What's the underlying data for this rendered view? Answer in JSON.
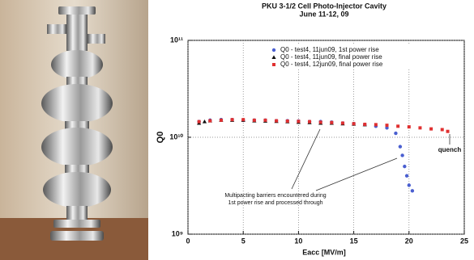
{
  "chart_data": {
    "type": "scatter",
    "title": "PKU 3-1/2 Cell Photo-Injector Cavity",
    "subtitle": "June 11-12, 09",
    "x_label": "Eacc [MV/m]",
    "y_label": "Q0",
    "xlim": [
      0,
      25
    ],
    "xticks": [
      0,
      5,
      10,
      15,
      20,
      25
    ],
    "ylim": [
      1000000000.0,
      100000000000.0
    ],
    "log_y": true,
    "yticks": [
      {
        "value": 1000000000.0,
        "label": "10⁹"
      },
      {
        "value": 10000000000.0,
        "label": "10¹⁰"
      },
      {
        "value": 100000000000.0,
        "label": "10¹¹"
      }
    ],
    "grid": true,
    "legend": "top-right",
    "annotations": [
      "quench",
      "Multipacting barriers encountered during",
      "1st power rise and processed through"
    ],
    "series": [
      {
        "name": "Q0 - test4, 11jun09, 1st power rise",
        "color": "#4a5fd0",
        "marker": "circle",
        "x": [
          1,
          2,
          3,
          4,
          5,
          6,
          7,
          8,
          9,
          10,
          11,
          12,
          13,
          14,
          15,
          16,
          17,
          18,
          18.8,
          19.2,
          19.4,
          19.6,
          19.8,
          20,
          20.3
        ],
        "values": [
          14500000000.0,
          15000000000.0,
          15200000000.0,
          15200000000.0,
          15000000000.0,
          15000000000.0,
          15000000000.0,
          14800000000.0,
          14800000000.0,
          14700000000.0,
          14500000000.0,
          14500000000.0,
          14300000000.0,
          14000000000.0,
          13800000000.0,
          13500000000.0,
          13000000000.0,
          12500000000.0,
          11000000000.0,
          8000000000.0,
          6500000000.0,
          5000000000.0,
          4000000000.0,
          3200000000.0,
          2800000000.0
        ]
      },
      {
        "name": "Q0 - test4, 11jun09, final power rise",
        "color": "#111111",
        "marker": "triangle",
        "x": [
          1,
          1.5,
          2,
          3,
          4,
          5,
          6,
          7,
          8,
          9,
          10,
          11,
          12,
          13,
          14,
          15,
          16
        ],
        "values": [
          14000000000.0,
          14500000000.0,
          14800000000.0,
          15000000000.0,
          15000000000.0,
          15000000000.0,
          14800000000.0,
          14700000000.0,
          14600000000.0,
          14500000000.0,
          14300000000.0,
          14200000000.0,
          14000000000.0,
          14000000000.0,
          13800000000.0,
          13700000000.0,
          13500000000.0
        ]
      },
      {
        "name": "Q0 - test4, 12jun09, final power rise",
        "color": "#e03030",
        "marker": "square",
        "x": [
          1,
          2,
          3,
          4,
          5,
          6,
          7,
          8,
          9,
          10,
          11,
          12,
          13,
          14,
          15,
          16,
          17,
          18,
          19,
          20,
          21,
          22,
          23,
          23.5
        ],
        "values": [
          14500000000.0,
          14800000000.0,
          15000000000.0,
          15200000000.0,
          15200000000.0,
          15000000000.0,
          15000000000.0,
          14800000000.0,
          14700000000.0,
          14600000000.0,
          14500000000.0,
          14300000000.0,
          14200000000.0,
          14000000000.0,
          13800000000.0,
          13600000000.0,
          13500000000.0,
          13300000000.0,
          13000000000.0,
          12800000000.0,
          12500000000.0,
          12200000000.0,
          12000000000.0,
          11500000000.0
        ]
      }
    ]
  }
}
